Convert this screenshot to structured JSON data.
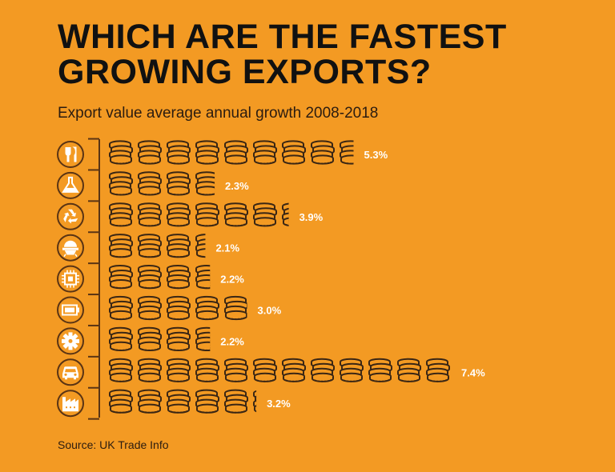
{
  "title": "WHICH ARE THE FASTEST GROWING EXPORTS?",
  "subtitle": "Export value average annual growth 2008-2018",
  "source": "Source: UK Trade Info",
  "colors": {
    "background": "#F39A23",
    "coin_line": "#3a2614",
    "icon": "#ffffff"
  },
  "chart_data": {
    "type": "bar",
    "title": "WHICH ARE THE FASTEST GROWING EXPORTS?",
    "subtitle": "Export value average annual growth 2008-2018",
    "xlabel": "",
    "ylabel": "",
    "unit": "%",
    "categories": [
      "fork-knife-icon",
      "flask-icon",
      "recycle-icon",
      "helmet-icon",
      "chip-icon",
      "battery-icon",
      "gear-icon",
      "car-icon",
      "factory-icon"
    ],
    "values": [
      5.3,
      2.3,
      3.9,
      2.1,
      2.2,
      3.0,
      2.2,
      7.4,
      3.2
    ],
    "labels": [
      "5.3%",
      "2.3%",
      "3.9%",
      "2.1%",
      "2.2%",
      "3.0%",
      "2.2%",
      "7.4%",
      "3.2%"
    ],
    "xlim": [
      0,
      7.4
    ]
  }
}
